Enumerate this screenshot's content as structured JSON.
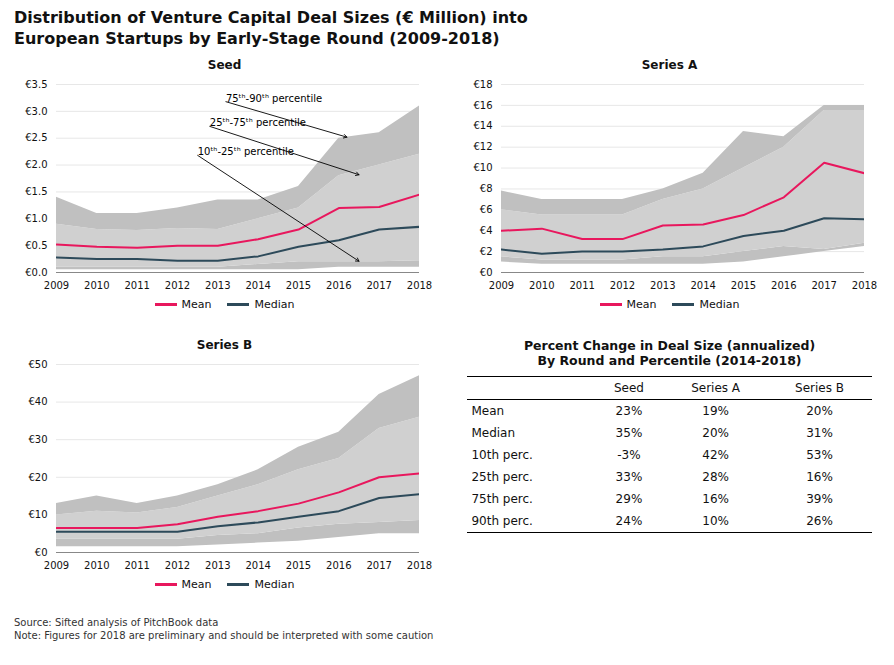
{
  "title": "Distribution of Venture Capital Deal Sizes (€ Million) into\nEuropean Startups by Early-Stage Round (2009-2018)",
  "caption": "Source: Sifted analysis of PitchBook data\nNote: Figures for 2018 are preliminary and should be interpreted with some caution",
  "chart_data": [
    {
      "type": "line",
      "title": "Seed",
      "x": [
        2009,
        2010,
        2011,
        2012,
        2013,
        2014,
        2015,
        2016,
        2017,
        2018
      ],
      "series": [
        {
          "name": "Mean",
          "color": "#e8175d",
          "values": [
            0.52,
            0.48,
            0.46,
            0.5,
            0.5,
            0.62,
            0.8,
            1.2,
            1.22,
            1.45
          ]
        },
        {
          "name": "Median",
          "color": "#2d4a5a",
          "values": [
            0.28,
            0.25,
            0.25,
            0.22,
            0.22,
            0.3,
            0.48,
            0.6,
            0.8,
            0.85
          ]
        }
      ],
      "bands": [
        {
          "lower": [
            0.05,
            0.05,
            0.05,
            0.05,
            0.05,
            0.05,
            0.05,
            0.1,
            0.1,
            0.1
          ],
          "upper": [
            0.1,
            0.1,
            0.1,
            0.1,
            0.1,
            0.15,
            0.2,
            0.2,
            0.2,
            0.22
          ],
          "color": "#c0c0c0"
        },
        {
          "lower": [
            0.1,
            0.1,
            0.1,
            0.1,
            0.1,
            0.15,
            0.2,
            0.2,
            0.2,
            0.22
          ],
          "upper": [
            0.9,
            0.8,
            0.78,
            0.82,
            0.8,
            1.0,
            1.2,
            1.8,
            2.0,
            2.2
          ],
          "color": "#d0d0d0"
        },
        {
          "lower": [
            0.9,
            0.8,
            0.78,
            0.82,
            0.8,
            1.0,
            1.2,
            1.8,
            2.0,
            2.2
          ],
          "upper": [
            1.4,
            1.1,
            1.1,
            1.2,
            1.35,
            1.35,
            1.6,
            2.5,
            2.6,
            3.1
          ],
          "color": "#c0c0c0"
        }
      ],
      "xlim": [
        2009,
        2018
      ],
      "xticks": [
        2009,
        2010,
        2011,
        2012,
        2013,
        2014,
        2015,
        2016,
        2017,
        2018
      ],
      "ylim": [
        0,
        3.5
      ],
      "yticks": [
        {
          "value": 0.0,
          "label": "€0.0"
        },
        {
          "value": 0.5,
          "label": "€0.5"
        },
        {
          "value": 1.0,
          "label": "€1.0"
        },
        {
          "value": 1.5,
          "label": "€1.5"
        },
        {
          "value": 2.0,
          "label": "€2.0"
        },
        {
          "value": 2.5,
          "label": "€2.5"
        },
        {
          "value": 3.0,
          "label": "€3.0"
        },
        {
          "value": 3.5,
          "label": "€3.5"
        }
      ],
      "grid": true,
      "legend": "bottom",
      "annotations": [
        {
          "text": "75ᵗʰ-90ᵗʰ percentile",
          "x": 2016.2,
          "y": 2.52,
          "text_x": 2013.2,
          "text_y": 3.18
        },
        {
          "text": "25ᵗʰ-75ᵗʰ percentile",
          "x": 2016.5,
          "y": 1.82,
          "text_x": 2012.8,
          "text_y": 2.72
        },
        {
          "text": "10ᵗʰ-25ᵗʰ percentile",
          "x": 2016.5,
          "y": 0.21,
          "text_x": 2012.5,
          "text_y": 2.18
        }
      ]
    },
    {
      "type": "line",
      "title": "Series A",
      "x": [
        2009,
        2010,
        2011,
        2012,
        2013,
        2014,
        2015,
        2016,
        2017,
        2018
      ],
      "series": [
        {
          "name": "Mean",
          "color": "#e8175d",
          "values": [
            4.0,
            4.2,
            3.2,
            3.2,
            4.5,
            4.6,
            5.5,
            7.2,
            10.5,
            9.5
          ]
        },
        {
          "name": "Median",
          "color": "#2d4a5a",
          "values": [
            2.2,
            1.8,
            2.0,
            2.0,
            2.2,
            2.5,
            3.5,
            4.0,
            5.2,
            5.1
          ]
        }
      ],
      "bands": [
        {
          "lower": [
            1.0,
            0.8,
            0.8,
            0.8,
            0.8,
            0.8,
            1.0,
            1.5,
            2.0,
            2.5
          ],
          "upper": [
            1.5,
            1.2,
            1.2,
            1.2,
            1.5,
            1.5,
            2.0,
            2.5,
            2.2,
            2.8
          ],
          "color": "#c0c0c0"
        },
        {
          "lower": [
            1.5,
            1.2,
            1.2,
            1.2,
            1.5,
            1.5,
            2.0,
            2.5,
            2.2,
            2.8
          ],
          "upper": [
            6.0,
            5.5,
            5.5,
            5.5,
            7.0,
            8.0,
            10.0,
            12.0,
            15.5,
            15.5
          ],
          "color": "#d0d0d0"
        },
        {
          "lower": [
            6.0,
            5.5,
            5.5,
            5.5,
            7.0,
            8.0,
            10.0,
            12.0,
            15.5,
            15.5
          ],
          "upper": [
            7.8,
            7.0,
            7.0,
            7.0,
            8.0,
            9.5,
            13.5,
            13.0,
            16.0,
            16.0
          ],
          "color": "#c0c0c0"
        }
      ],
      "xlim": [
        2009,
        2018
      ],
      "xticks": [
        2009,
        2010,
        2011,
        2012,
        2013,
        2014,
        2015,
        2016,
        2017,
        2018
      ],
      "ylim": [
        0,
        18
      ],
      "yticks": [
        {
          "value": 0,
          "label": "€0"
        },
        {
          "value": 2,
          "label": "€2"
        },
        {
          "value": 4,
          "label": "€4"
        },
        {
          "value": 6,
          "label": "€6"
        },
        {
          "value": 8,
          "label": "€8"
        },
        {
          "value": 10,
          "label": "€10"
        },
        {
          "value": 12,
          "label": "€12"
        },
        {
          "value": 14,
          "label": "€14"
        },
        {
          "value": 16,
          "label": "€16"
        },
        {
          "value": 18,
          "label": "€18"
        }
      ],
      "grid": true,
      "legend": "bottom"
    },
    {
      "type": "line",
      "title": "Series B",
      "x": [
        2009,
        2010,
        2011,
        2012,
        2013,
        2014,
        2015,
        2016,
        2017,
        2018
      ],
      "series": [
        {
          "name": "Mean",
          "color": "#e8175d",
          "values": [
            6.5,
            6.5,
            6.5,
            7.5,
            9.5,
            11.0,
            13.0,
            16.0,
            20.0,
            21.0
          ]
        },
        {
          "name": "Median",
          "color": "#2d4a5a",
          "values": [
            5.5,
            5.5,
            5.5,
            5.5,
            7.0,
            8.0,
            9.5,
            11.0,
            14.5,
            15.5
          ]
        }
      ],
      "bands": [
        {
          "lower": [
            1.5,
            1.5,
            1.5,
            1.5,
            2.0,
            2.5,
            3.0,
            4.0,
            5.0,
            5.0
          ],
          "upper": [
            3.5,
            3.5,
            3.5,
            3.5,
            4.5,
            5.0,
            6.5,
            7.5,
            8.0,
            8.5
          ],
          "color": "#c0c0c0"
        },
        {
          "lower": [
            3.5,
            3.5,
            3.5,
            3.5,
            4.5,
            5.0,
            6.5,
            7.5,
            8.0,
            8.5
          ],
          "upper": [
            10.0,
            11.0,
            10.5,
            12.0,
            15.0,
            18.0,
            22.0,
            25.0,
            33.0,
            36.0
          ],
          "color": "#d0d0d0"
        },
        {
          "lower": [
            10.0,
            11.0,
            10.5,
            12.0,
            15.0,
            18.0,
            22.0,
            25.0,
            33.0,
            36.0
          ],
          "upper": [
            13.0,
            15.0,
            13.0,
            15.0,
            18.0,
            22.0,
            28.0,
            32.0,
            42.0,
            47.0
          ],
          "color": "#c0c0c0"
        }
      ],
      "xlim": [
        2009,
        2018
      ],
      "xticks": [
        2009,
        2010,
        2011,
        2012,
        2013,
        2014,
        2015,
        2016,
        2017,
        2018
      ],
      "ylim": [
        0,
        50
      ],
      "yticks": [
        {
          "value": 0,
          "label": "€0"
        },
        {
          "value": 10,
          "label": "€10"
        },
        {
          "value": 20,
          "label": "€20"
        },
        {
          "value": 30,
          "label": "€30"
        },
        {
          "value": 40,
          "label": "€40"
        },
        {
          "value": 50,
          "label": "€50"
        }
      ],
      "grid": true,
      "legend": "bottom"
    },
    {
      "type": "table",
      "title": "Percent Change in Deal Size (annualized)",
      "subtitle": "By Round and Percentile (2014-2018)",
      "columns": [
        "Seed",
        "Series A",
        "Series B"
      ],
      "rows": [
        {
          "name": "Mean",
          "values": [
            23,
            19,
            20
          ],
          "value_labels": [
            "23%",
            "19%",
            "20%"
          ]
        },
        {
          "name": "Median",
          "values": [
            35,
            20,
            31
          ],
          "value_labels": [
            "35%",
            "20%",
            "31%"
          ]
        },
        {
          "name": "10th perc.",
          "values": [
            -3,
            42,
            53
          ],
          "value_labels": [
            "-3%",
            "42%",
            "53%"
          ]
        },
        {
          "name": "25th perc.",
          "values": [
            33,
            28,
            16
          ],
          "value_labels": [
            "33%",
            "28%",
            "16%"
          ]
        },
        {
          "name": "75th perc.",
          "values": [
            29,
            16,
            39
          ],
          "value_labels": [
            "29%",
            "16%",
            "39%"
          ]
        },
        {
          "name": "90th perc.",
          "values": [
            24,
            10,
            26
          ],
          "value_labels": [
            "24%",
            "10%",
            "26%"
          ]
        }
      ]
    }
  ]
}
